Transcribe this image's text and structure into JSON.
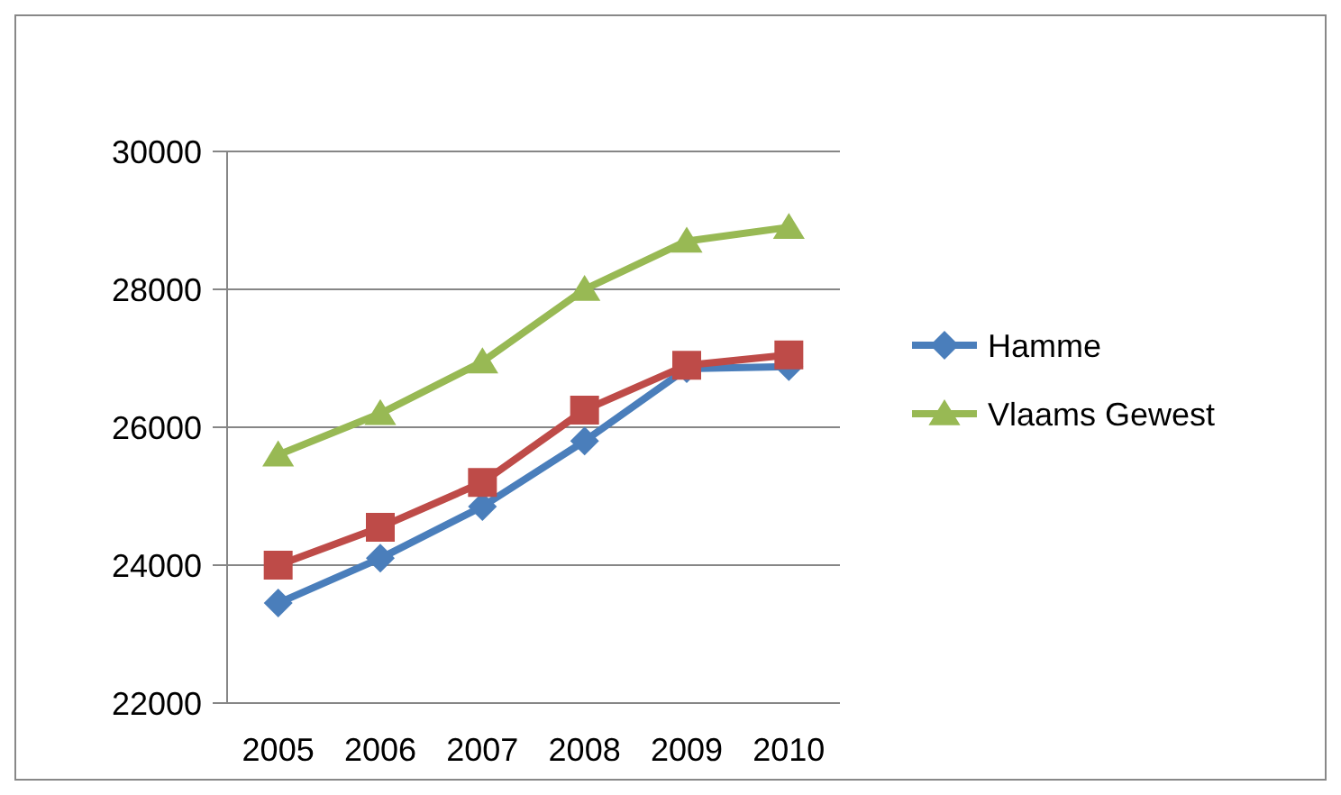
{
  "chart_data": {
    "type": "line",
    "categories": [
      "2005",
      "2006",
      "2007",
      "2008",
      "2009",
      "2010"
    ],
    "series": [
      {
        "name": "Hamme",
        "color": "#4a7ebb",
        "marker": "diamond",
        "values": [
          23450,
          24100,
          24850,
          25800,
          26850,
          26880
        ]
      },
      {
        "color": "#be4b48",
        "marker": "square",
        "values": [
          24000,
          24550,
          25200,
          26250,
          26900,
          27050
        ]
      },
      {
        "name": "Vlaams Gewest",
        "color": "#98b954",
        "marker": "triangle",
        "values": [
          25600,
          26200,
          26950,
          28000,
          28700,
          28900
        ]
      }
    ],
    "ylim": [
      22000,
      30000
    ],
    "yticks": [
      22000,
      24000,
      26000,
      28000,
      30000
    ],
    "grid": "y",
    "legend": "right"
  }
}
